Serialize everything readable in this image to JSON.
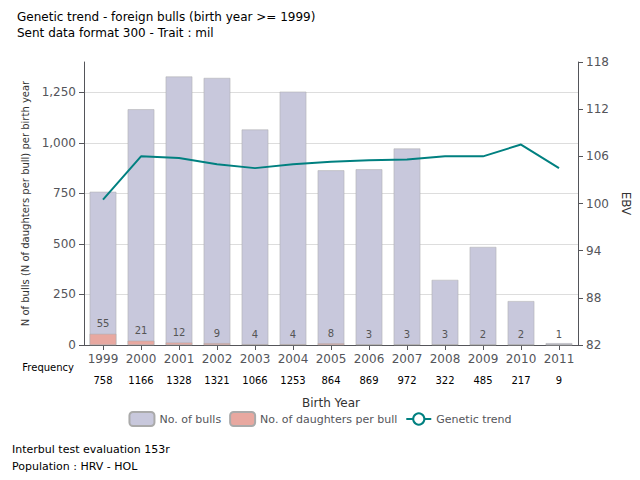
{
  "chart_data": {
    "type": "bar",
    "title": "Genetic trend - foreign bulls (birth year >= 1999)",
    "subtitle": "Sent data format 300 - Trait : mil",
    "footer": [
      "Interbul test evaluation 153r",
      "Population : HRV - HOL"
    ],
    "x_label": "Birth Year",
    "y_label": "N of bulls (N of daughters per bull) per birth year",
    "y2_label": "EBV",
    "categories": [
      "1999",
      "2000",
      "2001",
      "2002",
      "2003",
      "2004",
      "2005",
      "2006",
      "2007",
      "2008",
      "2009",
      "2010",
      "2011"
    ],
    "series": [
      {
        "name": "No. of bulls",
        "type": "bar",
        "color": "#c8c8dc",
        "values": [
          758,
          1166,
          1328,
          1321,
          1066,
          1253,
          864,
          869,
          972,
          322,
          485,
          217,
          9
        ]
      },
      {
        "name": "No. of daughters per bull",
        "type": "bar",
        "color": "#e8a8a0",
        "data_labels": true,
        "values": [
          55,
          21,
          12,
          9,
          4,
          4,
          8,
          3,
          3,
          3,
          2,
          2,
          1
        ]
      },
      {
        "name": "Genetic trend",
        "type": "line",
        "axis": "y2",
        "color": "#008080",
        "values": [
          100.5,
          106.0,
          105.8,
          105.0,
          104.5,
          105.0,
          105.3,
          105.5,
          105.6,
          106.0,
          106.0,
          107.5,
          104.5
        ]
      }
    ],
    "frequency_row": {
      "label": "Frequency",
      "values": [
        758,
        1166,
        1328,
        1321,
        1066,
        1253,
        864,
        869,
        972,
        322,
        485,
        217,
        9
      ]
    },
    "ylim": [
      0,
      1400
    ],
    "yticks": [
      0,
      250,
      500,
      750,
      1000,
      1250
    ],
    "y2lim": [
      82,
      118
    ],
    "y2ticks": [
      82,
      88,
      94,
      100,
      106,
      112,
      118
    ],
    "grid": true,
    "legend": "bottom"
  }
}
